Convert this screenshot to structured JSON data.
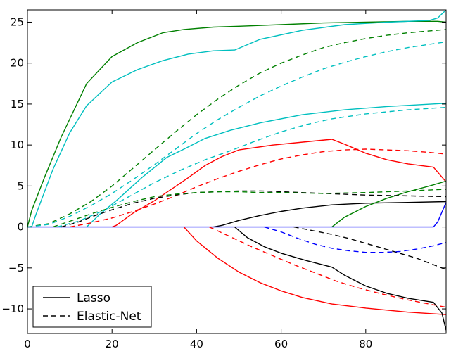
{
  "chart_data": {
    "type": "line",
    "title": "",
    "xlabel": "",
    "ylabel": "",
    "xlim": [
      0,
      99
    ],
    "ylim": [
      -13,
      26.5
    ],
    "xticks": [
      0,
      20,
      40,
      60,
      80
    ],
    "yticks": [
      -10,
      -5,
      0,
      5,
      10,
      15,
      20,
      25
    ],
    "grid": false,
    "legend": {
      "placement": "lower-left",
      "entries": [
        {
          "label": "Lasso",
          "dash": "solid"
        },
        {
          "label": "Elastic-Net",
          "dash": "dashed"
        }
      ]
    },
    "series": [
      {
        "method": "Lasso",
        "color": "#008000",
        "dash": "solid",
        "points": [
          [
            0,
            0
          ],
          [
            1,
            2
          ],
          [
            4,
            6
          ],
          [
            8,
            11
          ],
          [
            14,
            17.5
          ],
          [
            20,
            20.8
          ],
          [
            26,
            22.5
          ],
          [
            32,
            23.7
          ],
          [
            37,
            24.1
          ],
          [
            44,
            24.4
          ],
          [
            50,
            24.5
          ],
          [
            60,
            24.7
          ],
          [
            70,
            24.9
          ],
          [
            80,
            25
          ],
          [
            90,
            25.1
          ],
          [
            97,
            25.1
          ],
          [
            99,
            25
          ]
        ]
      },
      {
        "method": "Lasso",
        "color": "#00BFBF",
        "dash": "solid",
        "points": [
          [
            0,
            0
          ],
          [
            1,
            0
          ],
          [
            2,
            1.5
          ],
          [
            6,
            7
          ],
          [
            10,
            11.5
          ],
          [
            14,
            14.8
          ],
          [
            20,
            17.7
          ],
          [
            26,
            19.2
          ],
          [
            32,
            20.3
          ],
          [
            38,
            21.1
          ],
          [
            44,
            21.5
          ],
          [
            49,
            21.6
          ],
          [
            55,
            22.9
          ],
          [
            65,
            24
          ],
          [
            75,
            24.7
          ],
          [
            85,
            25
          ],
          [
            95,
            25.2
          ],
          [
            97,
            25.5
          ],
          [
            99,
            26.5
          ]
        ]
      },
      {
        "method": "Lasso",
        "color": "#00BFBF",
        "dash": "solid",
        "points": [
          [
            14,
            0
          ],
          [
            17,
            1.5
          ],
          [
            21,
            3.2
          ],
          [
            27,
            6
          ],
          [
            33,
            8.5
          ],
          [
            37,
            9.5
          ],
          [
            42,
            10.8
          ],
          [
            48,
            11.8
          ],
          [
            55,
            12.7
          ],
          [
            65,
            13.7
          ],
          [
            75,
            14.3
          ],
          [
            85,
            14.7
          ],
          [
            99,
            15.1
          ]
        ]
      },
      {
        "method": "Lasso",
        "color": "#FF0000",
        "dash": "solid",
        "points": [
          [
            20,
            0
          ],
          [
            21,
            0.2
          ],
          [
            25,
            1.7
          ],
          [
            30,
            3.2
          ],
          [
            36,
            5.3
          ],
          [
            38,
            6
          ],
          [
            42,
            7.5
          ],
          [
            46,
            8.6
          ],
          [
            50,
            9.4
          ],
          [
            58,
            10
          ],
          [
            66,
            10.4
          ],
          [
            72,
            10.7
          ],
          [
            75,
            10.1
          ],
          [
            80,
            9
          ],
          [
            85,
            8.2
          ],
          [
            90,
            7.7
          ],
          [
            96,
            7.3
          ],
          [
            99,
            5.5
          ]
        ]
      },
      {
        "method": "Lasso",
        "color": "#000000",
        "dash": "solid",
        "points": [
          [
            44,
            0
          ],
          [
            46,
            0.2
          ],
          [
            50,
            0.8
          ],
          [
            55,
            1.4
          ],
          [
            60,
            1.9
          ],
          [
            65,
            2.3
          ],
          [
            72,
            2.7
          ],
          [
            80,
            2.9
          ],
          [
            90,
            3
          ],
          [
            99,
            3.1
          ]
        ]
      },
      {
        "method": "Lasso",
        "color": "#008000",
        "dash": "solid",
        "points": [
          [
            72,
            0
          ],
          [
            75,
            1.2
          ],
          [
            80,
            2.5
          ],
          [
            85,
            3.5
          ],
          [
            90,
            4.3
          ],
          [
            95,
            5
          ],
          [
            99,
            5.6
          ]
        ]
      },
      {
        "method": "Lasso",
        "color": "#0000FF",
        "dash": "solid",
        "points": [
          [
            0,
            0
          ],
          [
            96,
            0
          ],
          [
            97,
            0.6
          ],
          [
            99,
            3
          ]
        ]
      },
      {
        "method": "Lasso",
        "color": "#FF0000",
        "dash": "solid",
        "points": [
          [
            37,
            0
          ],
          [
            40,
            -1.7
          ],
          [
            45,
            -3.8
          ],
          [
            50,
            -5.5
          ],
          [
            55,
            -6.8
          ],
          [
            60,
            -7.8
          ],
          [
            65,
            -8.6
          ],
          [
            72,
            -9.4
          ],
          [
            80,
            -9.9
          ],
          [
            90,
            -10.4
          ],
          [
            99,
            -10.7
          ]
        ]
      },
      {
        "method": "Lasso",
        "color": "#000000",
        "dash": "solid",
        "points": [
          [
            49,
            0
          ],
          [
            52,
            -1.3
          ],
          [
            56,
            -2.4
          ],
          [
            60,
            -3.2
          ],
          [
            66,
            -4.1
          ],
          [
            72,
            -4.9
          ],
          [
            75,
            -5.9
          ],
          [
            80,
            -7.2
          ],
          [
            85,
            -8.1
          ],
          [
            90,
            -8.7
          ],
          [
            96,
            -9.2
          ],
          [
            98,
            -10.5
          ],
          [
            99,
            -12.6
          ]
        ]
      },
      {
        "method": "Elastic-Net",
        "color": "#008000",
        "dash": "dashed",
        "points": [
          [
            0,
            0
          ],
          [
            5,
            0.4
          ],
          [
            10,
            1.6
          ],
          [
            15,
            3.1
          ],
          [
            20,
            5
          ],
          [
            25,
            7.2
          ],
          [
            30,
            9.4
          ],
          [
            35,
            11.6
          ],
          [
            40,
            13.7
          ],
          [
            45,
            15.6
          ],
          [
            50,
            17.3
          ],
          [
            55,
            18.8
          ],
          [
            60,
            20
          ],
          [
            65,
            21
          ],
          [
            70,
            21.9
          ],
          [
            75,
            22.5
          ],
          [
            80,
            23
          ],
          [
            85,
            23.4
          ],
          [
            90,
            23.7
          ],
          [
            99,
            24.1
          ]
        ]
      },
      {
        "method": "Elastic-Net",
        "color": "#00BFBF",
        "dash": "dashed",
        "points": [
          [
            0,
            0
          ],
          [
            5,
            0.3
          ],
          [
            10,
            1.3
          ],
          [
            15,
            2.6
          ],
          [
            20,
            4.1
          ],
          [
            25,
            5.8
          ],
          [
            30,
            7.6
          ],
          [
            35,
            9.5
          ],
          [
            40,
            11.4
          ],
          [
            45,
            13.1
          ],
          [
            50,
            14.6
          ],
          [
            55,
            16
          ],
          [
            60,
            17.2
          ],
          [
            65,
            18.3
          ],
          [
            70,
            19.3
          ],
          [
            75,
            20.1
          ],
          [
            80,
            20.8
          ],
          [
            85,
            21.4
          ],
          [
            90,
            21.9
          ],
          [
            99,
            22.6
          ]
        ]
      },
      {
        "method": "Elastic-Net",
        "color": "#00BFBF",
        "dash": "dashed",
        "points": [
          [
            7,
            0
          ],
          [
            12,
            0.7
          ],
          [
            18,
            2
          ],
          [
            24,
            3.7
          ],
          [
            30,
            5.4
          ],
          [
            36,
            6.9
          ],
          [
            42,
            8.2
          ],
          [
            48,
            9.3
          ],
          [
            54,
            10.5
          ],
          [
            60,
            11.6
          ],
          [
            66,
            12.5
          ],
          [
            72,
            13.2
          ],
          [
            80,
            13.8
          ],
          [
            90,
            14.3
          ],
          [
            99,
            14.6
          ]
        ]
      },
      {
        "method": "Elastic-Net",
        "color": "#FF0000",
        "dash": "dashed",
        "points": [
          [
            10,
            0
          ],
          [
            15,
            0.5
          ],
          [
            20,
            1.1
          ],
          [
            25,
            1.9
          ],
          [
            30,
            2.8
          ],
          [
            35,
            3.8
          ],
          [
            40,
            4.9
          ],
          [
            45,
            5.9
          ],
          [
            50,
            6.8
          ],
          [
            55,
            7.6
          ],
          [
            60,
            8.3
          ],
          [
            65,
            8.8
          ],
          [
            70,
            9.2
          ],
          [
            75,
            9.4
          ],
          [
            80,
            9.5
          ],
          [
            85,
            9.4
          ],
          [
            90,
            9.3
          ],
          [
            95,
            9.1
          ],
          [
            99,
            8.9
          ]
        ]
      },
      {
        "method": "Elastic-Net",
        "color": "#000000",
        "dash": "dashed",
        "points": [
          [
            8,
            0
          ],
          [
            12,
            0.6
          ],
          [
            16,
            1.4
          ],
          [
            20,
            2.1
          ],
          [
            25,
            2.9
          ],
          [
            30,
            3.5
          ],
          [
            35,
            3.9
          ],
          [
            40,
            4.2
          ],
          [
            45,
            4.3
          ],
          [
            50,
            4.4
          ],
          [
            55,
            4.4
          ],
          [
            60,
            4.3
          ],
          [
            70,
            4.1
          ],
          [
            80,
            3.9
          ],
          [
            90,
            3.8
          ],
          [
            99,
            3.7
          ]
        ]
      },
      {
        "method": "Elastic-Net",
        "color": "#008000",
        "dash": "dashed",
        "points": [
          [
            6,
            0
          ],
          [
            10,
            0.7
          ],
          [
            15,
            1.6
          ],
          [
            20,
            2.4
          ],
          [
            25,
            3.1
          ],
          [
            30,
            3.7
          ],
          [
            35,
            4
          ],
          [
            40,
            4.2
          ],
          [
            45,
            4.3
          ],
          [
            50,
            4.3
          ],
          [
            55,
            4.2
          ],
          [
            60,
            4.2
          ],
          [
            70,
            4.1
          ],
          [
            80,
            4.2
          ],
          [
            90,
            4.4
          ],
          [
            99,
            4.6
          ]
        ]
      },
      {
        "method": "Elastic-Net",
        "color": "#FF0000",
        "dash": "dashed",
        "points": [
          [
            43,
            0
          ],
          [
            48,
            -1.2
          ],
          [
            53,
            -2.4
          ],
          [
            58,
            -3.5
          ],
          [
            63,
            -4.6
          ],
          [
            68,
            -5.6
          ],
          [
            73,
            -6.6
          ],
          [
            78,
            -7.4
          ],
          [
            84,
            -8.2
          ],
          [
            90,
            -8.9
          ],
          [
            95,
            -9.4
          ],
          [
            99,
            -9.8
          ]
        ]
      },
      {
        "method": "Elastic-Net",
        "color": "#000000",
        "dash": "dashed",
        "points": [
          [
            63,
            0
          ],
          [
            67,
            -0.4
          ],
          [
            72,
            -0.9
          ],
          [
            76,
            -1.4
          ],
          [
            80,
            -2
          ],
          [
            84,
            -2.6
          ],
          [
            88,
            -3.2
          ],
          [
            92,
            -3.8
          ],
          [
            96,
            -4.6
          ],
          [
            99,
            -5.2
          ]
        ]
      },
      {
        "method": "Elastic-Net",
        "color": "#0000FF",
        "dash": "dashed",
        "points": [
          [
            56,
            0
          ],
          [
            60,
            -0.6
          ],
          [
            64,
            -1.4
          ],
          [
            68,
            -2.1
          ],
          [
            72,
            -2.6
          ],
          [
            76,
            -2.9
          ],
          [
            80,
            -3.1
          ],
          [
            84,
            -3.1
          ],
          [
            88,
            -3
          ],
          [
            92,
            -2.7
          ],
          [
            96,
            -2.3
          ],
          [
            99,
            -1.9
          ]
        ]
      }
    ]
  }
}
